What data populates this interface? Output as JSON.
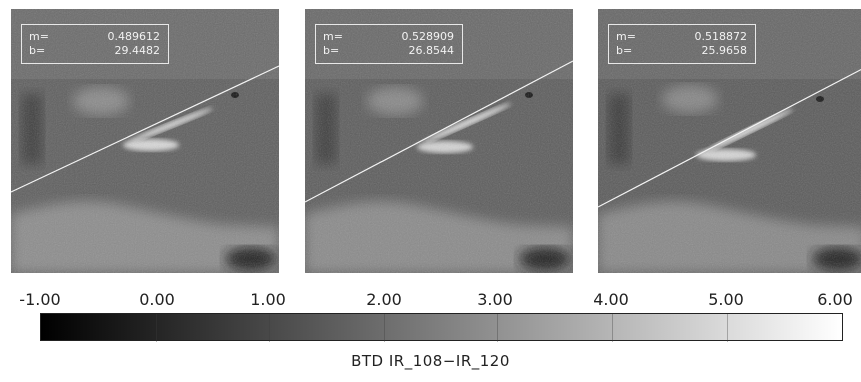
{
  "panels": [
    {
      "m_label": "m=",
      "m": "0.489612",
      "b_label": "b=",
      "b": "29.4482"
    },
    {
      "m_label": "m=",
      "m": "0.528909",
      "b_label": "b=",
      "b": "26.8544"
    },
    {
      "m_label": "m=",
      "m": "0.518872",
      "b_label": "b=",
      "b": "25.9658"
    }
  ],
  "colorbar": {
    "tick_labels": [
      "-1.00",
      "0.00",
      "1.00",
      "2.00",
      "3.00",
      "4.00",
      "5.00",
      "6.00"
    ],
    "range": [
      -1.0,
      6.0
    ],
    "colors": {
      "low": "#000000",
      "high": "#ffffff"
    },
    "label": "BTD IR_108−IR_120"
  }
}
